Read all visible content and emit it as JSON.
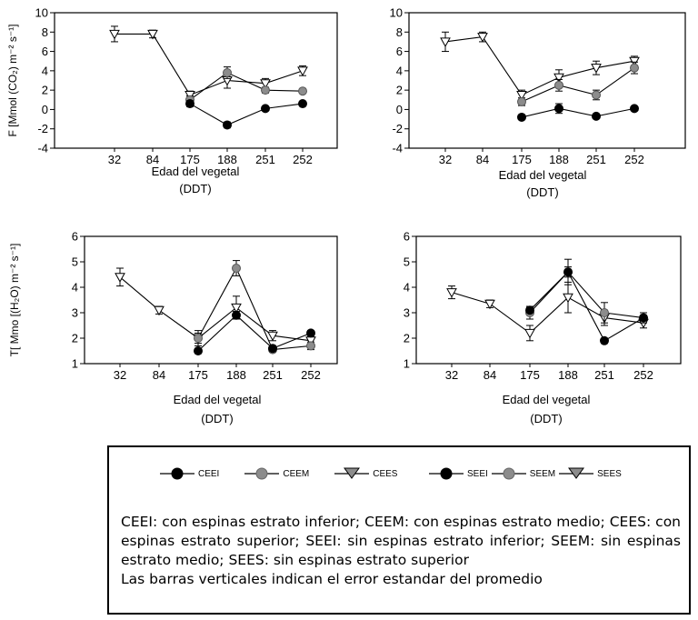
{
  "chart_data": [
    {
      "type": "line",
      "ylabel": "F [Mmol (CO₂) m⁻² s⁻¹]",
      "xlabel": "Edad del vegetal",
      "xlabel2": "(DDT)",
      "categories": [
        "32",
        "84",
        "175",
        "188",
        "251",
        "252"
      ],
      "ylim": [
        -4,
        10
      ],
      "yticks": [
        "-4",
        "-2",
        "0",
        "2",
        "4",
        "6",
        "8",
        "10"
      ],
      "series": [
        {
          "name": "CEEI",
          "marker": "circle-black",
          "values": [
            null,
            null,
            0.6,
            -1.6,
            0.1,
            0.6
          ],
          "errors": [
            0,
            0,
            0.3,
            0.3,
            0.2,
            0.2
          ]
        },
        {
          "name": "CEEM",
          "marker": "circle-gray",
          "values": [
            null,
            null,
            1.0,
            3.8,
            2.0,
            1.9
          ],
          "errors": [
            0,
            0,
            0.4,
            0.6,
            0.3,
            0.2
          ]
        },
        {
          "name": "CEES",
          "marker": "triangle-open",
          "values": [
            7.8,
            7.8,
            1.5,
            3.0,
            2.7,
            4.0
          ],
          "errors": [
            0.8,
            0.4,
            0.4,
            0.8,
            0.5,
            0.5
          ]
        }
      ]
    },
    {
      "type": "line",
      "categories": [
        "32",
        "84",
        "175",
        "188",
        "251",
        "252"
      ],
      "xlabel": "Edad del vegetal",
      "xlabel2": "(DDT)",
      "ylim": [
        -4,
        10
      ],
      "yticks": [
        "-4",
        "-2",
        "0",
        "2",
        "4",
        "6",
        "8",
        "10"
      ],
      "series": [
        {
          "name": "SEEI",
          "marker": "circle-black",
          "values": [
            null,
            null,
            -0.8,
            0.1,
            -0.7,
            0.1
          ],
          "errors": [
            0,
            0,
            0.2,
            0.5,
            0.2,
            0.2
          ]
        },
        {
          "name": "SEEM",
          "marker": "circle-gray",
          "values": [
            null,
            null,
            0.8,
            2.5,
            1.5,
            4.3
          ],
          "errors": [
            0,
            0,
            0.4,
            0.6,
            0.5,
            0.6
          ]
        },
        {
          "name": "SEES",
          "marker": "triangle-open",
          "values": [
            7.0,
            7.5,
            1.5,
            3.3,
            4.3,
            5.0
          ],
          "errors": [
            1.0,
            0.5,
            0.5,
            0.8,
            0.7,
            0.5
          ]
        }
      ]
    },
    {
      "type": "line",
      "ylabel": "T[ Mmo [(H₂O) m⁻² s⁻¹]",
      "xlabel": "Edad del vegetal",
      "xlabel2": "(DDT)",
      "categories": [
        "32",
        "84",
        "175",
        "188",
        "251",
        "252"
      ],
      "ylim": [
        1,
        6
      ],
      "yticks": [
        "1",
        "2",
        "3",
        "4",
        "5",
        "6"
      ],
      "series": [
        {
          "name": "CEEI",
          "marker": "circle-black",
          "values": [
            null,
            null,
            1.5,
            2.9,
            1.6,
            2.2
          ],
          "errors": [
            0,
            0,
            0.1,
            0.15,
            0.1,
            0.1
          ]
        },
        {
          "name": "CEEM",
          "marker": "circle-gray",
          "values": [
            null,
            null,
            2.0,
            4.75,
            1.55,
            1.7
          ],
          "errors": [
            0,
            0,
            0.2,
            0.3,
            0.1,
            0.15
          ]
        },
        {
          "name": "CEES",
          "marker": "triangle-open",
          "values": [
            4.4,
            3.1,
            2.0,
            3.2,
            2.1,
            1.9
          ],
          "errors": [
            0.35,
            0.15,
            0.3,
            0.45,
            0.2,
            0.15
          ]
        }
      ]
    },
    {
      "type": "line",
      "categories": [
        "32",
        "84",
        "175",
        "188",
        "251",
        "252"
      ],
      "xlabel": "Edad del vegetal",
      "xlabel2": "(DDT)",
      "ylim": [
        1,
        6
      ],
      "yticks": [
        "1",
        "2",
        "3",
        "4",
        "5",
        "6"
      ],
      "series": [
        {
          "name": "SEEI",
          "marker": "circle-black",
          "values": [
            null,
            null,
            3.1,
            4.6,
            1.9,
            2.8
          ],
          "errors": [
            0,
            0,
            0.1,
            0.2,
            0.1,
            0.1
          ]
        },
        {
          "name": "SEEM",
          "marker": "circle-gray",
          "values": [
            null,
            null,
            3.0,
            4.6,
            3.0,
            2.8
          ],
          "errors": [
            0,
            0,
            0.25,
            0.5,
            0.4,
            0.2
          ]
        },
        {
          "name": "SEES",
          "marker": "triangle-open",
          "values": [
            3.8,
            3.35,
            2.2,
            3.6,
            2.8,
            2.6
          ],
          "errors": [
            0.25,
            0.15,
            0.3,
            0.6,
            0.3,
            0.2
          ]
        }
      ]
    }
  ],
  "legend": {
    "left": [
      {
        "label": "CEEI",
        "marker": "circle-black"
      },
      {
        "label": "CEEM",
        "marker": "circle-gray"
      },
      {
        "label": "CEES",
        "marker": "triangle-gray"
      }
    ],
    "right": [
      {
        "label": "SEEI",
        "marker": "circle-black"
      },
      {
        "label": "SEEM",
        "marker": "circle-gray"
      },
      {
        "label": "SEES",
        "marker": "triangle-gray"
      }
    ]
  },
  "notes": {
    "line1": "CEEI: con espinas estrato inferior; CEEM: con espinas estrato medio; CEES: con espinas estrato superior; SEEI: sin espinas estrato inferior; SEEM: sin espinas estrato medio; SEES: sin espinas estrato superior",
    "line2": "Las barras verticales indican el error estandar del promedio"
  },
  "colors": {
    "black": "#000000",
    "gray": "#8c8c8c",
    "open": "#ffffff"
  }
}
